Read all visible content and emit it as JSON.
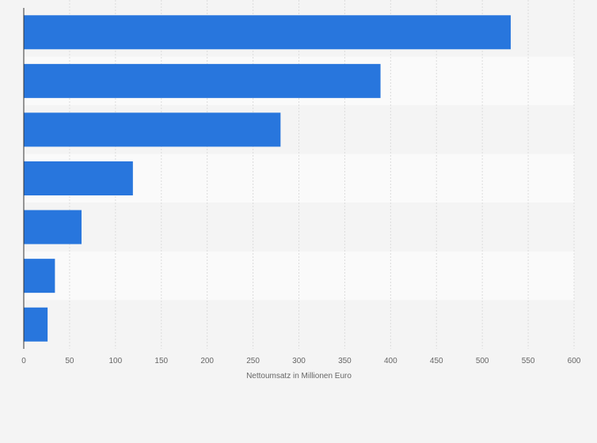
{
  "chart_data": {
    "type": "bar",
    "orientation": "horizontal",
    "title": "",
    "xlabel": "Nettoumsatz in Millionen Euro",
    "ylabel": "",
    "xlim": [
      0,
      600
    ],
    "xticks": [
      "0",
      "50",
      "100",
      "150",
      "200",
      "250",
      "300",
      "350",
      "400",
      "450",
      "500",
      "550",
      "600"
    ],
    "grid": true,
    "legend": "none",
    "bar_color": "#2876dd",
    "values": [
      531,
      389,
      280,
      119,
      63,
      34,
      26
    ]
  }
}
